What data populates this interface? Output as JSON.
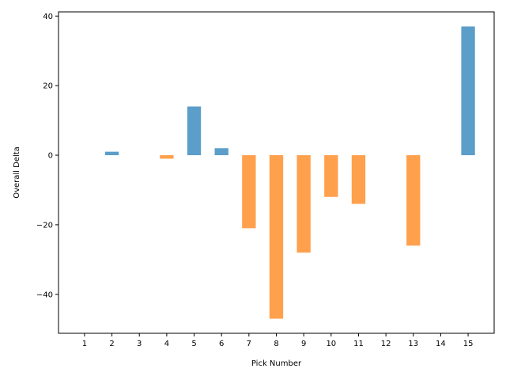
{
  "chart_data": {
    "type": "bar",
    "title": "",
    "xlabel": "Pick Number",
    "ylabel": "Overall Delta",
    "categories": [
      "1",
      "2",
      "3",
      "4",
      "5",
      "6",
      "7",
      "8",
      "9",
      "10",
      "11",
      "12",
      "13",
      "14",
      "15"
    ],
    "values": [
      0,
      1,
      0,
      -1,
      14,
      2,
      -21,
      -47,
      -28,
      -12,
      -14,
      0,
      -26,
      0,
      37
    ],
    "ylim": [
      -51.2,
      41.2
    ],
    "yticks": [
      -40,
      -20,
      0,
      20,
      40
    ],
    "ytick_labels": [
      "−40",
      "−20",
      "0",
      "20",
      "40"
    ],
    "grid": false,
    "legend": "none",
    "colors": {
      "positive": "#5b9ec9",
      "negative": "#ffa04d",
      "axis": "#000000",
      "background": "#ffffff"
    }
  }
}
